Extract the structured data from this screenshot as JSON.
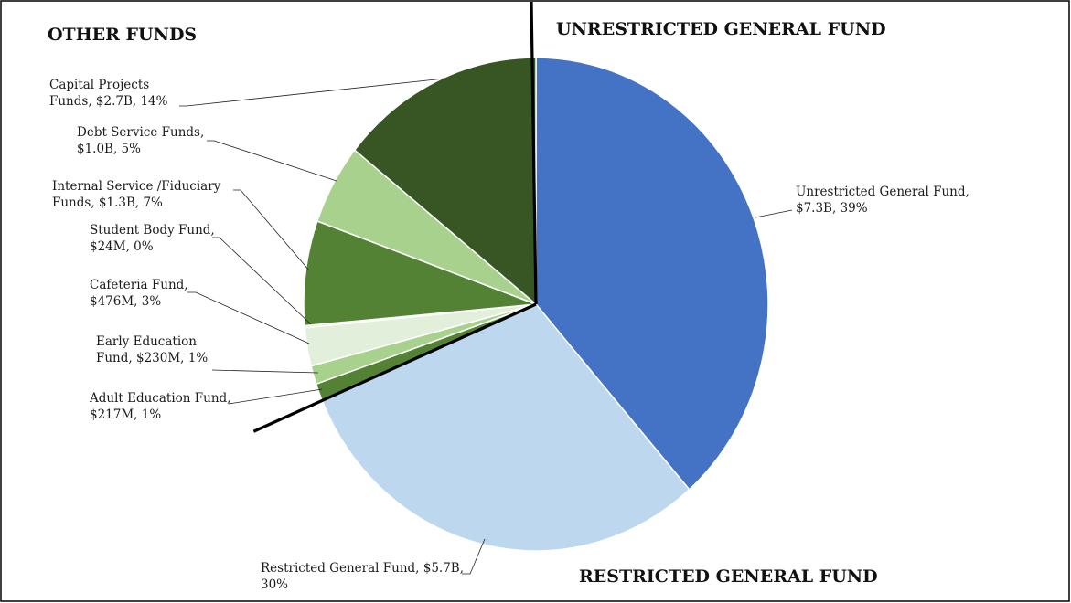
{
  "chart_data": {
    "type": "pie",
    "unit": "USD",
    "slices": [
      {
        "name": "Unrestricted General Fund",
        "value": 7.3,
        "value_label": "$7.3B",
        "percent": 39,
        "color": "#4472C4",
        "label_lines": [
          "Unrestricted General Fund,",
          "$7.3B, 39%"
        ]
      },
      {
        "name": "Restricted General Fund",
        "value": 5.7,
        "value_label": "$5.7B",
        "percent": 30,
        "color": "#BDD7EE",
        "label_lines": [
          "Restricted General Fund, $5.7B,",
          "30%"
        ]
      },
      {
        "name": "Adult Education Fund",
        "value": 0.217,
        "value_label": "$217M",
        "percent": 1,
        "color": "#548235",
        "label_lines": [
          "Adult Education Fund,",
          "$217M, 1%"
        ]
      },
      {
        "name": "Early Education Fund",
        "value": 0.23,
        "value_label": "$230M",
        "percent": 1,
        "color": "#A9D18E",
        "label_lines": [
          "Early Education",
          "Fund, $230M, 1%"
        ]
      },
      {
        "name": "Cafeteria Fund",
        "value": 0.476,
        "value_label": "$476M",
        "percent": 3,
        "color": "#E2EFDA",
        "label_lines": [
          "Cafeteria Fund,",
          "$476M, 3%"
        ]
      },
      {
        "name": "Student Body Fund",
        "value": 0.024,
        "value_label": "$24M",
        "percent": 0,
        "color": "#C5E0B4",
        "label_lines": [
          "Student Body Fund,",
          "$24M, 0%"
        ]
      },
      {
        "name": "Internal Service /Fiduciary Funds",
        "value": 1.3,
        "value_label": "$1.3B",
        "percent": 7,
        "color": "#548235",
        "label_lines": [
          "Internal Service /Fiduciary",
          "Funds, $1.3B, 7%"
        ]
      },
      {
        "name": "Debt Service Funds",
        "value": 1.0,
        "value_label": "$1.0B",
        "percent": 5,
        "color": "#A9D18E",
        "label_lines": [
          "Debt Service Funds,",
          "$1.0B, 5%"
        ]
      },
      {
        "name": "Capital Projects Funds",
        "value": 2.7,
        "value_label": "$2.7B",
        "percent": 14,
        "color": "#375623",
        "label_lines": [
          "Capital Projects",
          "Funds, $2.7B, 14%"
        ]
      }
    ],
    "group_headings": [
      "OTHER FUNDS",
      "UNRESTRICTED GENERAL FUND",
      "RESTRICTED GENERAL FUND"
    ],
    "legend": "none",
    "grid": false
  }
}
